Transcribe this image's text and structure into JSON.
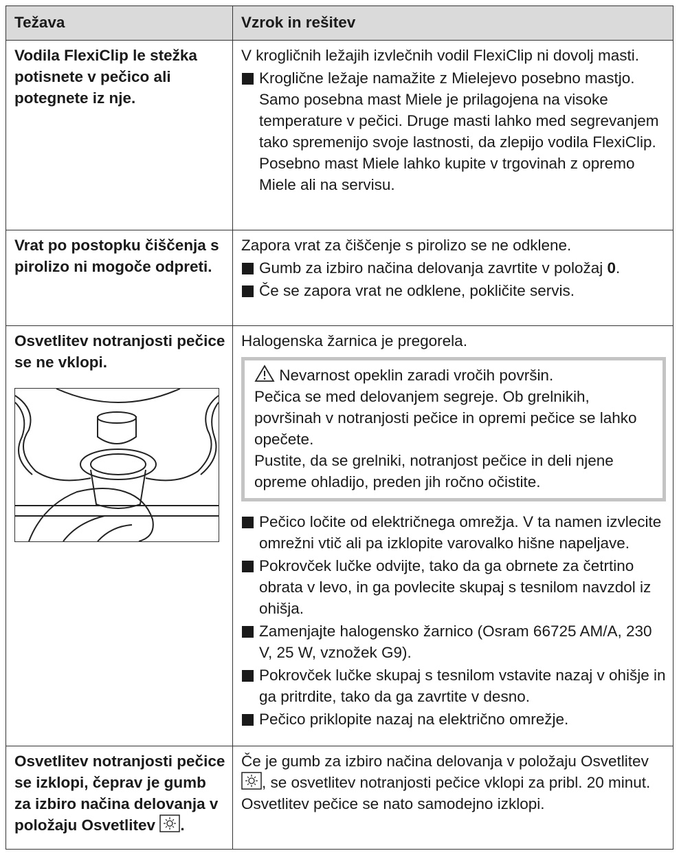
{
  "table": {
    "header": [
      "Težava",
      "Vzrok in rešitev"
    ],
    "rows": [
      {
        "problem": "Vodila FlexiClip le stežka potisnete v pečico ali potegnete iz nje.",
        "cause": "V krogličnih ležajih izvlečnih vodil FlexiClip ni dovolj masti.",
        "bullets": [
          {
            "text": "Kroglične ležaje namažite z Mielejevo posebno mastjo.",
            "detail": "Samo posebna mast Miele je prilagojena na visoke temperature v pečici. Druge masti lahko med segrevanjem tako spremenijo svoje lastnosti, da zlepijo vodila FlexiClip. Posebno mast Miele lahko kupite v trgovinah z opremo Miele ali na servisu."
          }
        ]
      },
      {
        "problem": "Vrat po postopku čiščenja s pirolizo ni mogoče odpreti.",
        "cause": "Zapora vrat za čiščenje s pirolizo se ne odklene.",
        "bullets": [
          {
            "text": "Gumb za izbiro načina delovanja zavrtite v položaj ",
            "bold": "0",
            "after": "."
          },
          {
            "text": "Če se zapora vrat ne odklene, pokličite servis."
          }
        ]
      },
      {
        "problem": "Osvetlitev notranjosti pečice se ne vklopi.",
        "cause": "Halogenska žarnica je pregorela.",
        "warning": {
          "title": "Nevarnost opeklin zaradi vročih površin.",
          "paragraphs": [
            "Pečica se med delovanjem segreje. Ob grelnikih, površinah v notranjosti pečice in opremi pečice se lahko opečete.",
            "Pustite, da se grelniki, notranjost pečice in deli njene opreme ohladijo, preden jih ročno očistite."
          ]
        },
        "bullets": [
          {
            "text": "Pečico ločite od električnega omrežja. V ta namen izvlecite omrežni vtič ali pa izklopite varovalko hišne napeljave."
          },
          {
            "text": "Pokrovček lučke odvijte, tako da ga obrnete za četrtino obrata v levo, in ga povlecite skupaj s tesnilom navzdol iz ohišja."
          },
          {
            "text": "Zamenjajte halogensko žarnico (Osram 66725 AM/A, 230 V, 25 W, vznožek G9)."
          },
          {
            "text": "Pokrovček lučke skupaj s tesnilom vstavite nazaj v ohišje in ga pritrdite, tako da ga zavrtite v desno."
          },
          {
            "text": "Pečico priklopite nazaj na električno omrežje."
          }
        ]
      },
      {
        "problem": "Osvetlitev notranjosti pečice se izklopi, čeprav je gumb za izbiro načina delovanja v položaju Osvetlitev",
        "problem_after": ".",
        "cause": "Če je gumb za izbiro načina delovanja v položaju Osvetlitev",
        "cause_after": ", se osvetlitev notranjosti pečice vklopi za pribl. 20 minut. Osvetlitev pečice se nato samodejno izklopi."
      }
    ]
  }
}
